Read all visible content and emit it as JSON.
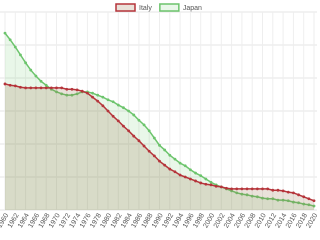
{
  "chart_data": {
    "type": "line",
    "x": [
      1960,
      1961,
      1962,
      1963,
      1964,
      1965,
      1966,
      1967,
      1968,
      1969,
      1970,
      1971,
      1972,
      1973,
      1974,
      1975,
      1976,
      1977,
      1978,
      1979,
      1980,
      1981,
      1982,
      1983,
      1984,
      1985,
      1986,
      1987,
      1988,
      1989,
      1990,
      1991,
      1992,
      1993,
      1994,
      1995,
      1996,
      1997,
      1998,
      1999,
      2000,
      2001,
      2002,
      2003,
      2004,
      2005,
      2006,
      2007,
      2008,
      2009,
      2010,
      2011,
      2012,
      2013,
      2014,
      2015,
      2016,
      2017,
      2018,
      2019,
      2020
    ],
    "xlim": [
      1960,
      2020
    ],
    "xticks": [
      1960,
      1962,
      1964,
      1966,
      1968,
      1970,
      1972,
      1974,
      1976,
      1978,
      1980,
      1982,
      1984,
      1986,
      1988,
      1990,
      1992,
      1994,
      1996,
      1998,
      2000,
      2002,
      2004,
      2006,
      2008,
      2010,
      2012,
      2014,
      2016,
      2018,
      2020
    ],
    "ylim": [
      0,
      30
    ],
    "yticks": [
      0,
      5,
      10,
      15,
      20,
      25,
      30
    ],
    "grid": true,
    "legend": "top",
    "series": [
      {
        "name": "Italy",
        "color": "#b5343a",
        "fill": "rgba(150,110,70,0.2)",
        "values": [
          19.1,
          18.9,
          18.8,
          18.6,
          18.5,
          18.5,
          18.5,
          18.5,
          18.5,
          18.5,
          18.5,
          18.5,
          18.3,
          18.3,
          18.2,
          18.0,
          17.7,
          17.1,
          16.5,
          15.8,
          15.0,
          14.2,
          13.5,
          12.7,
          12.0,
          11.2,
          10.5,
          9.7,
          8.9,
          8.2,
          7.4,
          6.8,
          6.2,
          5.8,
          5.3,
          5.0,
          4.7,
          4.4,
          4.1,
          3.9,
          3.8,
          3.6,
          3.5,
          3.3,
          3.2,
          3.2,
          3.2,
          3.2,
          3.2,
          3.2,
          3.2,
          3.2,
          3.0,
          3.0,
          2.9,
          2.7,
          2.6,
          2.3,
          2.0,
          1.7,
          1.4
        ]
      },
      {
        "name": "Japan",
        "color": "#6cc46c",
        "fill": "rgba(110,200,110,0.15)",
        "values": [
          26.8,
          25.8,
          24.7,
          23.5,
          22.3,
          21.2,
          20.3,
          19.5,
          18.9,
          18.3,
          17.9,
          17.6,
          17.4,
          17.4,
          17.6,
          17.9,
          17.9,
          17.7,
          17.4,
          17.1,
          16.7,
          16.4,
          15.9,
          15.5,
          15.0,
          14.4,
          13.6,
          12.9,
          12.0,
          10.9,
          9.8,
          9.1,
          8.3,
          7.7,
          7.1,
          6.7,
          6.1,
          5.6,
          5.2,
          4.7,
          4.2,
          3.8,
          3.5,
          3.2,
          2.9,
          2.6,
          2.4,
          2.3,
          2.1,
          2.0,
          1.8,
          1.7,
          1.7,
          1.5,
          1.5,
          1.4,
          1.2,
          1.1,
          0.9,
          0.8,
          0.6
        ]
      }
    ]
  }
}
